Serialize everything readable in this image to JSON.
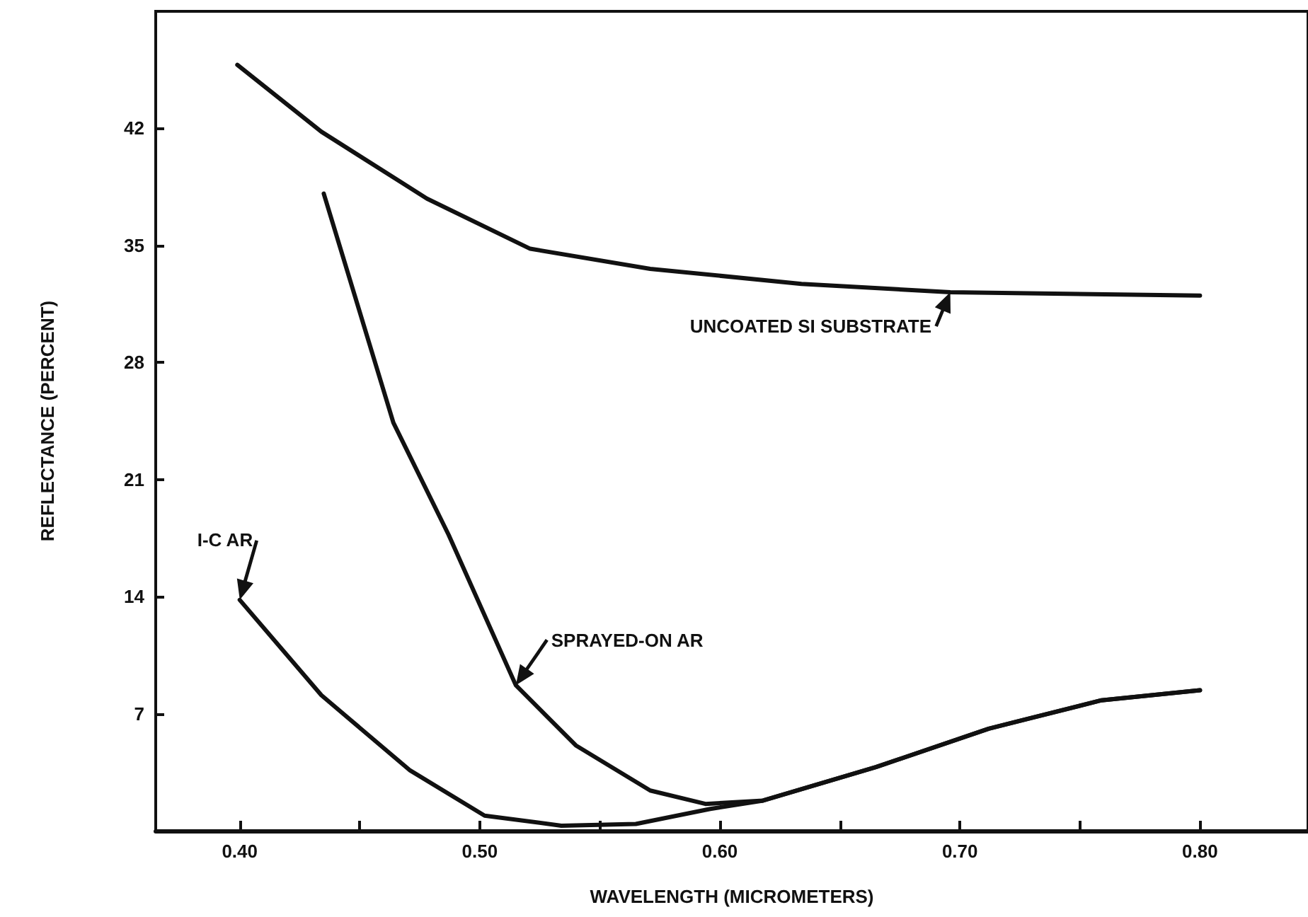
{
  "chart_data": {
    "type": "line",
    "xlabel": "WAVELENGTH (MICROMETERS)",
    "ylabel": "REFLECTANCE (PERCENT)",
    "xlim": [
      0.365,
      0.845
    ],
    "ylim": [
      0,
      49
    ],
    "xticks": [
      {
        "value": 0.4,
        "label": "0.40"
      },
      {
        "value": 0.45,
        "label": null
      },
      {
        "value": 0.5,
        "label": "0.50"
      },
      {
        "value": 0.55,
        "label": null
      },
      {
        "value": 0.6,
        "label": "0.60"
      },
      {
        "value": 0.65,
        "label": null
      },
      {
        "value": 0.7,
        "label": "0.70"
      },
      {
        "value": 0.75,
        "label": null
      },
      {
        "value": 0.8,
        "label": "0.80"
      }
    ],
    "yticks": [
      7,
      14,
      21,
      28,
      35,
      42
    ],
    "grid": false,
    "marker": "none",
    "line_style": "solid",
    "series": [
      {
        "color": "#111111",
        "x": [
          0.399,
          0.434,
          0.478,
          0.521,
          0.571,
          0.634,
          0.696,
          0.8
        ],
        "values": [
          45.8,
          41.8,
          37.8,
          34.8,
          33.6,
          32.7,
          32.2,
          32.0
        ]
      },
      {
        "color": "#111111",
        "x": [
          0.435,
          0.464,
          0.487,
          0.515,
          0.54,
          0.571,
          0.594,
          0.618,
          0.665,
          0.712,
          0.759,
          0.8
        ],
        "values": [
          38.1,
          24.4,
          17.7,
          8.7,
          5.1,
          2.4,
          1.6,
          1.8,
          3.8,
          6.1,
          7.8,
          8.4
        ]
      },
      {
        "color": "#111111",
        "x": [
          0.4,
          0.434,
          0.471,
          0.502,
          0.534,
          0.565,
          0.596,
          0.618,
          0.665,
          0.712,
          0.759,
          0.8
        ],
        "values": [
          13.8,
          8.1,
          3.6,
          0.9,
          0.3,
          0.4,
          1.3,
          1.8,
          3.8,
          6.1,
          7.8,
          8.4
        ]
      }
    ],
    "annotations": [
      {
        "text": "UNCOATED SI SUBSTRATE",
        "x": 0.696,
        "y": 32.2
      },
      {
        "text": "SPRAYED-ON AR",
        "x": 0.515,
        "y": 8.7
      },
      {
        "text": "I-C AR",
        "x": 0.4,
        "y": 13.8
      }
    ]
  }
}
